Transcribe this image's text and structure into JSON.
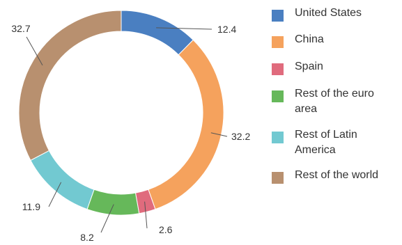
{
  "chart_data": {
    "type": "pie",
    "donut": true,
    "legend_position": "right",
    "categories": [
      "United States",
      "China",
      "Spain",
      "Rest of the euro area",
      "Rest of Latin America",
      "Rest of the world"
    ],
    "values": [
      12.4,
      32.2,
      2.6,
      8.2,
      11.9,
      32.7
    ],
    "data_labels": [
      "12.4",
      "32.2",
      "2.6",
      "8.2",
      "11.9",
      "32.7"
    ],
    "colors": [
      "#4a7fc1",
      "#f5a25d",
      "#e06b7d",
      "#66b85a",
      "#72c9d1",
      "#b8906f"
    ]
  }
}
